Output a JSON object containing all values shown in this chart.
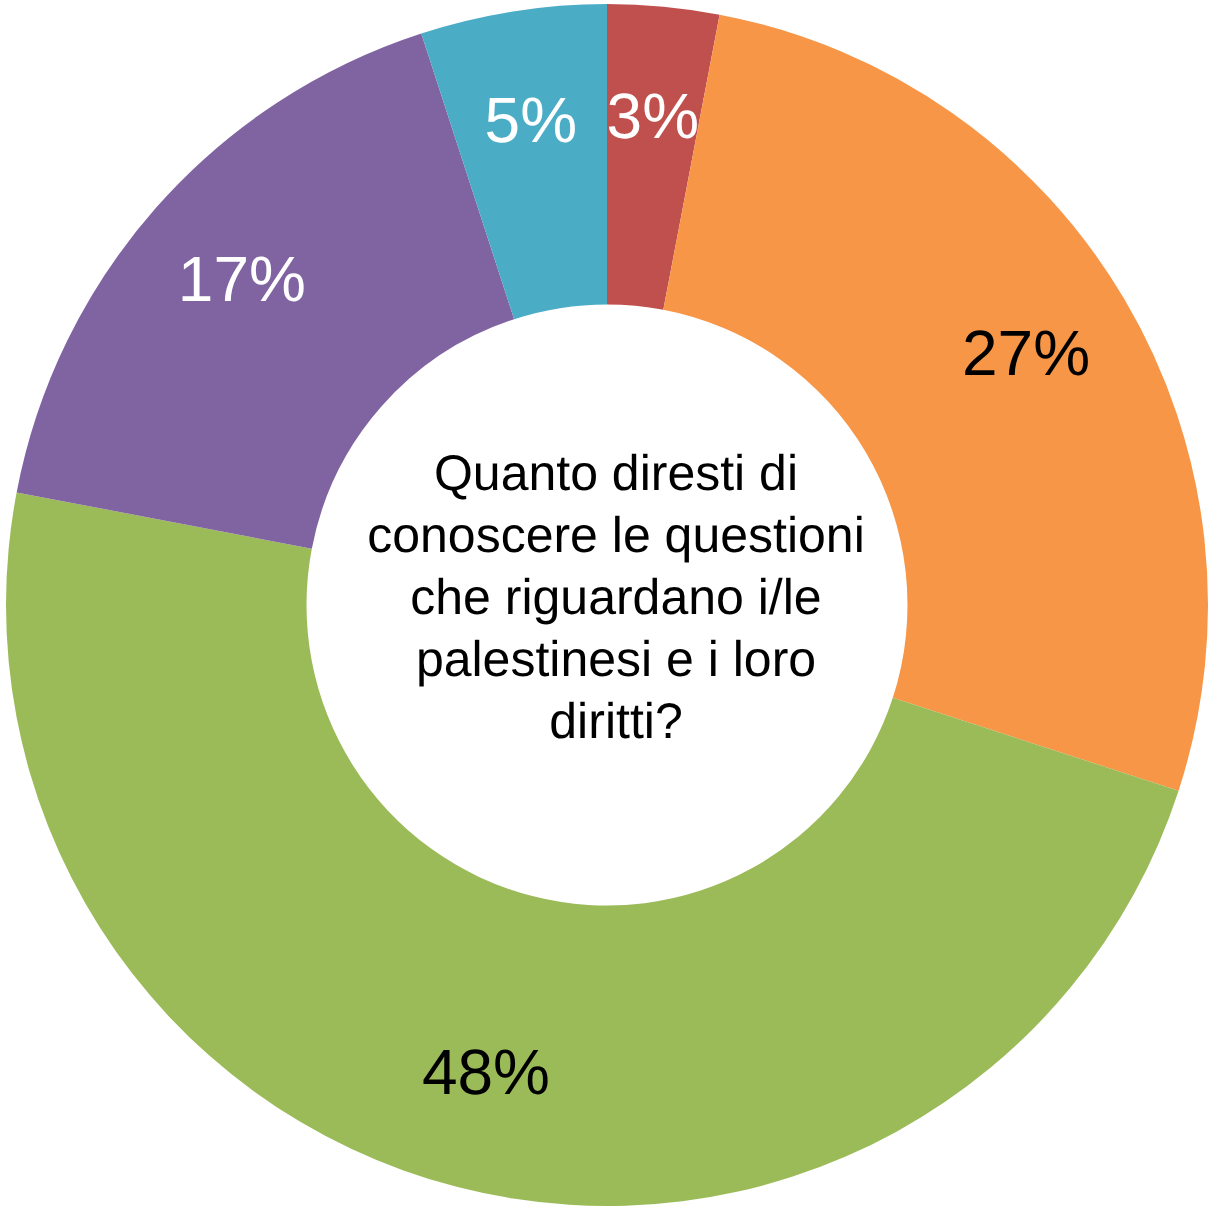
{
  "chart_data": {
    "type": "donut",
    "title": "Quanto diresti di conoscere le questioni che riguardano i/le palestinesi e i loro diritti?",
    "categories": [
      null,
      null,
      null,
      null,
      null
    ],
    "values": [
      3,
      27,
      48,
      17,
      5
    ],
    "colors": [
      "#c0504d",
      "#f79646",
      "#9bbb59",
      "#8064a2",
      "#4bacc6"
    ],
    "value_labels": [
      "3%",
      "27%",
      "48%",
      "17%",
      "5%"
    ],
    "legend": false
  }
}
